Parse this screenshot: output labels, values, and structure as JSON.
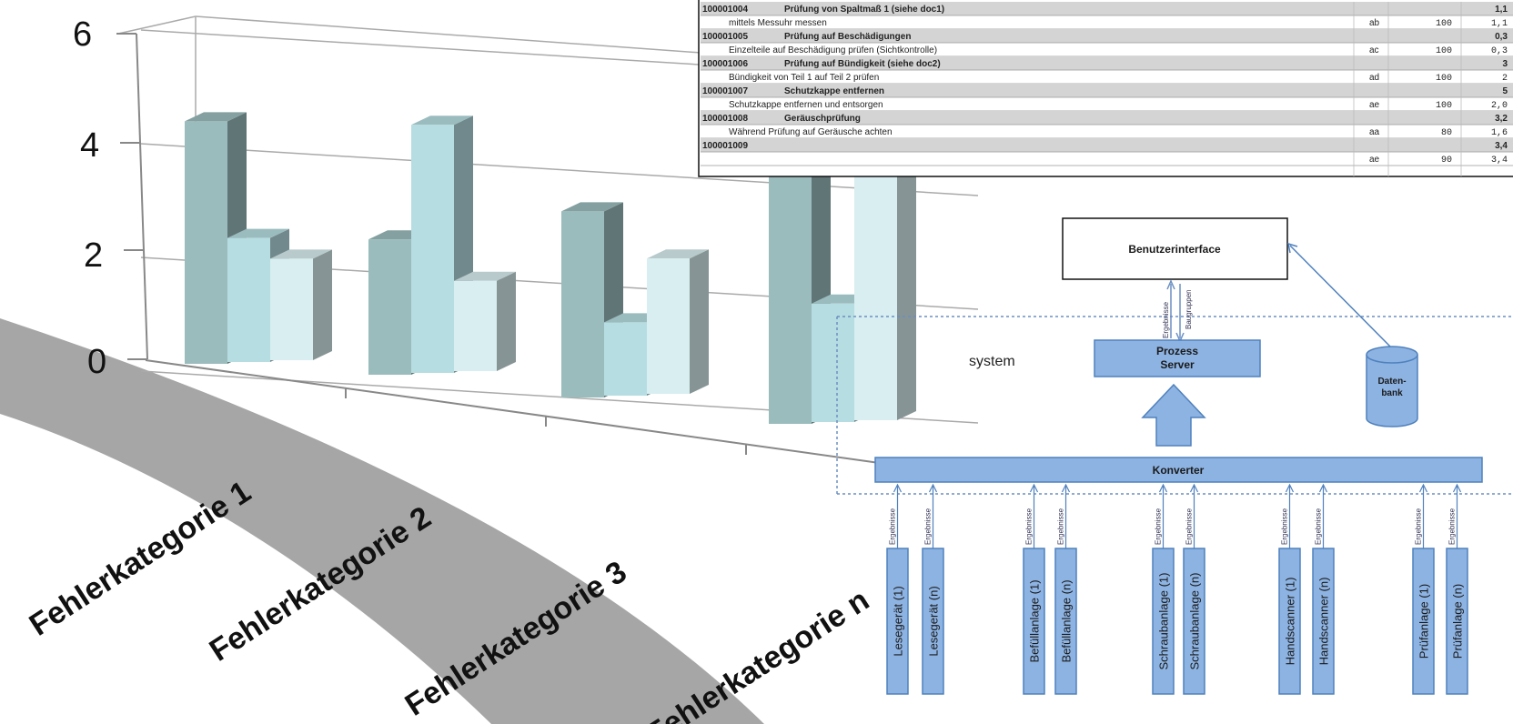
{
  "table": {
    "rows": [
      {
        "id": "100001004",
        "title": "Prüfung von Spaltmaß 1 (siehe doc1)",
        "total": "1,1",
        "desc": "mittels Messuhr messen",
        "code": "ab",
        "pct": "100",
        "val": "1,1"
      },
      {
        "id": "100001005",
        "title": "Prüfung auf Beschädigungen",
        "total": "0,3",
        "desc": "Einzelteile auf Beschädigung prüfen (Sichtkontrolle)",
        "code": "ac",
        "pct": "100",
        "val": "0,3"
      },
      {
        "id": "100001006",
        "title": "Prüfung auf Bündigkeit (siehe doc2)",
        "total": "3",
        "desc": "Bündigkeit von Teil 1 auf Teil 2 prüfen",
        "code": "ad",
        "pct": "100",
        "val": "2"
      },
      {
        "id": "100001007",
        "title": "Schutzkappe entfernen",
        "total": "5",
        "desc": "Schutzkappe entfernen und entsorgen",
        "code": "ae",
        "pct": "100",
        "val": "2,0"
      },
      {
        "id": "100001008",
        "title": "Geräuschprüfung",
        "total": "3,2",
        "desc": "Während Prüfung auf Geräusche achten",
        "code": "aa",
        "pct": "80",
        "val": "1,6"
      },
      {
        "id": "100001009",
        "title": "",
        "total": "3,4",
        "desc": "",
        "code": "ae",
        "pct": "90",
        "val": "3,4"
      }
    ]
  },
  "chart_data": {
    "type": "bar",
    "categories": [
      "Fehlerkategorie 1",
      "Fehlerkategorie 2",
      "Fehlerkategorie 3",
      "Fehlerkategorie n"
    ],
    "series": [
      {
        "values": [
          4.3,
          2.4,
          3.3,
          4.5
        ]
      },
      {
        "values": [
          2.2,
          4.4,
          1.3,
          2.1
        ]
      },
      {
        "values": [
          1.8,
          1.6,
          2.4,
          4.8
        ]
      }
    ],
    "yticks": [
      "0",
      "2",
      "4",
      "6"
    ],
    "ylim": [
      0,
      6
    ],
    "colors": {
      "series": [
        "#9bbcbd",
        "#b6dde1",
        "#d8eef0"
      ]
    }
  },
  "diagram": {
    "ui_label": "Benutzerinterface",
    "server_line1": "Prozess",
    "server_line2": "Server",
    "db_line1": "Daten-",
    "db_line2": "bank",
    "converter": "Konverter",
    "system_label": "system",
    "flow_results": "Ergebnisse",
    "flow_groups": "Baugruppen",
    "devices": [
      "Lesegerät (1)",
      "Lesegerät (n)",
      "Befüllanlage (1)",
      "Befüllanlage (n)",
      "Schraubanlage (1)",
      "Schraubanlage (n)",
      "Handscanner (1)",
      "Handscanner (n)",
      "Prüfanlage (1)",
      "Prüfanlage (n)"
    ],
    "colors": {
      "box": "#8db3e2",
      "box_stroke": "#4f81bd"
    }
  }
}
